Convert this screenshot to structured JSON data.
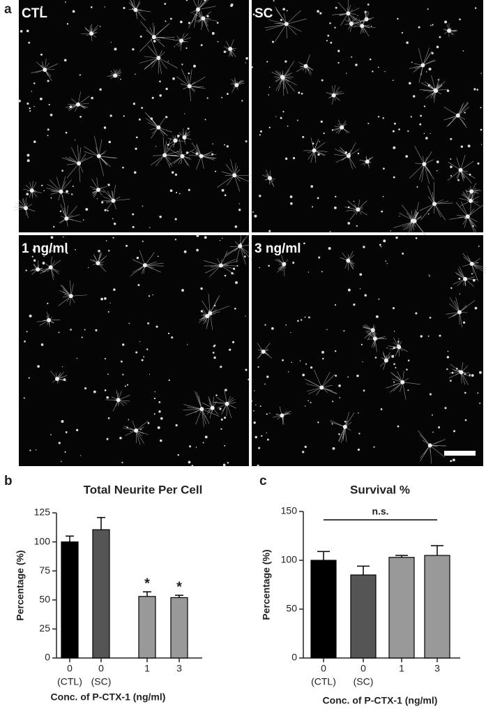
{
  "panel_labels": {
    "a": "a",
    "b": "b",
    "c": "c"
  },
  "micrographs": [
    {
      "label": "CTL"
    },
    {
      "label": "SC"
    },
    {
      "label": "1 ng/ml"
    },
    {
      "label": "3 ng/ml"
    }
  ],
  "chart_data": [
    {
      "type": "bar",
      "title": "Total Neurite Per Cell",
      "xlabel": "Conc. of P-CTX-1 (ng/ml)",
      "ylabel": "Percentage (%)",
      "categories": [
        "0",
        "0",
        "1",
        "3"
      ],
      "category_notes": [
        "(CTL)",
        "(SC)"
      ],
      "values": [
        100,
        110.5,
        53,
        52
      ],
      "errors": [
        5,
        10.5,
        4,
        2
      ],
      "colors": [
        "#000000",
        "#555555",
        "#999999",
        "#999999"
      ],
      "significance": [
        null,
        null,
        "*",
        "*"
      ],
      "ylim": [
        0,
        125
      ],
      "yticks": [
        0,
        25,
        50,
        75,
        100,
        125
      ]
    },
    {
      "type": "bar",
      "title": "Survival %",
      "xlabel": "Conc. of P-CTX-1 (ng/ml)",
      "ylabel": "Percentage (%)",
      "categories": [
        "0",
        "0",
        "1",
        "3"
      ],
      "category_notes": [
        "(CTL)",
        "(SC)"
      ],
      "values": [
        100,
        85,
        103,
        105
      ],
      "errors": [
        9,
        9,
        2,
        10
      ],
      "colors": [
        "#000000",
        "#555555",
        "#999999",
        "#999999"
      ],
      "bracket_label": "n.s.",
      "ylim": [
        0,
        150
      ],
      "yticks": [
        0,
        50,
        100,
        150
      ]
    }
  ]
}
